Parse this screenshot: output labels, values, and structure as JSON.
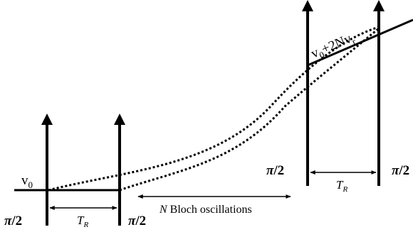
{
  "labels": {
    "v0_base": "v",
    "v0_sub": "0",
    "v_end_base": "v",
    "v_end_sub": "0",
    "v_end_mid": "+2Nv",
    "v_end_sub2": "r",
    "pi_symbol": "π",
    "pi_suffix": "/2",
    "tr_base": "T",
    "tr_sub": "R",
    "bloch_n": "N",
    "bloch_text": " Bloch oscillations"
  }
}
